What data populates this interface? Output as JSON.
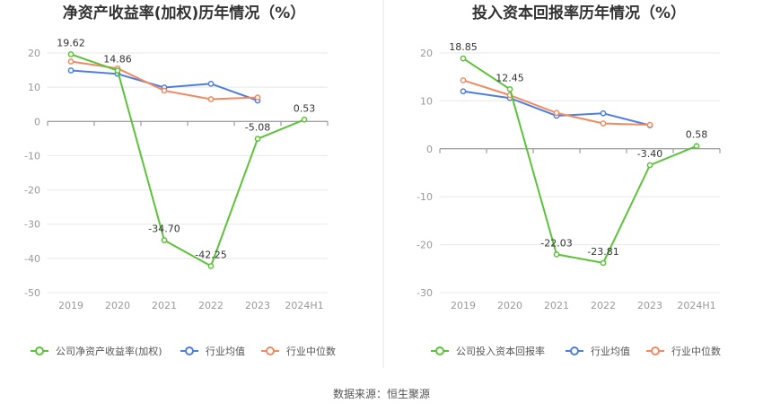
{
  "chart_data": [
    {
      "type": "line",
      "title": "净资产收益率(加权)历年情况（%）",
      "categories": [
        "2019",
        "2020",
        "2021",
        "2022",
        "2023",
        "2024H1"
      ],
      "ylim": [
        -50,
        20
      ],
      "yticks": [
        20,
        10,
        0,
        -10,
        -20,
        -30,
        -40,
        -50
      ],
      "grid": true,
      "legend_position": "bottom",
      "series": [
        {
          "name": "公司净资产收益率(加权)",
          "color": "#5cc23a",
          "values": [
            19.62,
            14.86,
            -34.7,
            -42.25,
            -5.08,
            0.53
          ],
          "labels": [
            "19.62",
            "14.86",
            "-34.70",
            "-42.25",
            "-5.08",
            "0.53"
          ]
        },
        {
          "name": "行业均值",
          "color": "#4f7fdc",
          "values": [
            14.9,
            13.9,
            9.9,
            11.0,
            6.1,
            null
          ]
        },
        {
          "name": "行业中位数",
          "color": "#f08a63",
          "values": [
            17.5,
            15.5,
            9.0,
            6.5,
            7.0,
            null
          ]
        }
      ]
    },
    {
      "type": "line",
      "title": "投入资本回报率历年情况（%）",
      "categories": [
        "2019",
        "2020",
        "2021",
        "2022",
        "2023",
        "2024H1"
      ],
      "ylim": [
        -30,
        20
      ],
      "yticks": [
        20,
        10,
        0,
        -10,
        -20,
        -30
      ],
      "grid": true,
      "legend_position": "bottom",
      "series": [
        {
          "name": "公司投入资本回报率",
          "color": "#5cc23a",
          "values": [
            18.85,
            12.45,
            -22.03,
            -23.81,
            -3.4,
            0.58
          ],
          "labels": [
            "18.85",
            "12.45",
            "-22.03",
            "-23.81",
            "-3.40",
            "0.58"
          ]
        },
        {
          "name": "行业均值",
          "color": "#4f7fdc",
          "values": [
            12.0,
            10.6,
            6.9,
            7.4,
            4.9,
            null
          ]
        },
        {
          "name": "行业中位数",
          "color": "#f08a63",
          "values": [
            14.3,
            11.2,
            7.5,
            5.3,
            5.0,
            null
          ]
        }
      ]
    }
  ],
  "source": "数据来源：恒生聚源"
}
